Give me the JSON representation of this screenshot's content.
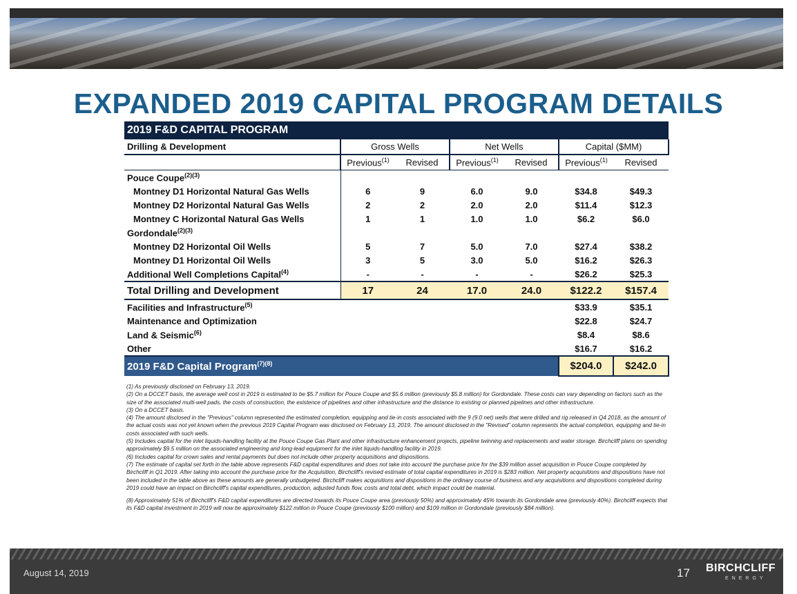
{
  "title": "EXPANDED 2019 CAPITAL PROGRAM DETAILS",
  "table": {
    "title": "2019 F&D CAPITAL PROGRAM",
    "label_header": "Drilling & Development",
    "group_headers": [
      "Gross Wells",
      "Net Wells",
      "Capital ($MM)"
    ],
    "sub_headers": [
      {
        "text": "Previous",
        "sup": "(1)"
      },
      {
        "text": "Revised"
      },
      {
        "text": "Previous",
        "sup": "(1)"
      },
      {
        "text": "Revised"
      },
      {
        "text": "Previous",
        "sup": "(1)"
      },
      {
        "text": "Revised"
      }
    ],
    "groups": [
      {
        "label": "Pouce Coupe",
        "sup": "(2)(3)",
        "rows": [
          {
            "label": "Montney D1 Horizontal Natural Gas Wells",
            "values": [
              "6",
              "9",
              "6.0",
              "9.0",
              "$34.8",
              "$49.3"
            ]
          },
          {
            "label": "Montney D2 Horizontal Natural Gas Wells",
            "values": [
              "2",
              "2",
              "2.0",
              "2.0",
              "$11.4",
              "$12.3"
            ]
          },
          {
            "label": "Montney C Horizontal Natural Gas Wells",
            "values": [
              "1",
              "1",
              "1.0",
              "1.0",
              "$6.2",
              "$6.0"
            ]
          }
        ]
      },
      {
        "label": "Gordondale",
        "sup": "(2)(3)",
        "rows": [
          {
            "label": "Montney D2 Horizontal Oil Wells",
            "values": [
              "5",
              "7",
              "5.0",
              "7.0",
              "$27.4",
              "$38.2"
            ]
          },
          {
            "label": "Montney D1 Horizontal Oil Wells",
            "values": [
              "3",
              "5",
              "3.0",
              "5.0",
              "$16.2",
              "$26.3"
            ]
          }
        ]
      }
    ],
    "additional": {
      "label": "Additional Well Completions Capital",
      "sup": "(4)",
      "values": [
        "-",
        "-",
        "-",
        "-",
        "$26.2",
        "$25.3"
      ]
    },
    "total": {
      "label": "Total Drilling and Development",
      "values": [
        "17",
        "24",
        "17.0",
        "24.0",
        "$122.2",
        "$157.4"
      ]
    },
    "other_rows": [
      {
        "label": "Facilities and Infrastructure",
        "sup": "(5)",
        "values": [
          "$33.9",
          "$35.1"
        ]
      },
      {
        "label": "Maintenance and Optimization",
        "values": [
          "$22.8",
          "$24.7"
        ]
      },
      {
        "label": "Land & Seismic",
        "sup": "(6)",
        "values": [
          "$8.4",
          "$8.6"
        ]
      },
      {
        "label": "Other",
        "values": [
          "$16.7",
          "$16.2"
        ]
      }
    ],
    "program": {
      "label": "2019 F&D Capital Program",
      "sup": "(7)(8)",
      "values": [
        "$204.0",
        "$242.0"
      ]
    }
  },
  "footnotes": [
    "(1) As previously disclosed on February 13, 2019.",
    "(2) On a DCCET basis, the average well cost in 2019 is estimated to be $5.7 million for Pouce Coupe and $5.6 million (previously $5.8 million) for Gordondale. These costs can vary depending on factors such as the size of the associated multi-well pads, the costs of construction, the existence of pipelines and other infrastructure and the distance to existing or planned pipelines and other infrastructure.",
    "(3) On a DCCET basis.",
    "(4) The amount disclosed in the \"Previous\" column represented the estimated completion, equipping and tie-in costs associated with the 9 (9.0 net) wells that were drilled and rig released in Q4 2018, as the amount of the actual costs was not yet known when the previous 2019 Capital Program was disclosed on February 13, 2019. The amount disclosed in the \"Revised\" column represents the actual completion, equipping and tie-in costs associated with such wells.",
    "(5) Includes capital for the inlet liquids-handling facility at the Pouce Coupe Gas Plant and other infrastructure enhancement projects, pipeline twinning and replacements and water storage. Birchcliff plans on spending approximately $9.5 million on the associated engineering and long-lead equipment for the inlet liquids-handling facility in 2019.",
    "(6) Includes capital for crown sales and rental payments but does not include other property acquisitions and dispositions.",
    "(7) The estimate of capital set forth in the table above represents F&D capital expenditures and does not take into account the purchase price for the $39 million asset acquisition in Pouce Coupe completed by Birchcliff in Q1 2019. After taking into account the purchase price for the Acquisition, Birchcliff's revised estimate of total capital expenditures in 2019 is $283 million.  Net property acquisitions and dispositions have not been included in the table above as these amounts are generally unbudgeted. Birchcliff makes acquisitions and dispositions in the ordinary course of business and any acquisitions and dispositions completed during 2019 could have an impact on Birchcliff's capital expenditures, production, adjusted funds flow, costs and total debt, which impact could be material.",
    "(8) Approximately 51% of Birchcliff's F&D capital expenditures are directed towards its Pouce Coupe area (previously 50%) and approximately 45% towards its Gordondale area (previously 40%). Birchcliff expects that its F&D capital investment in 2019 will now be approximately $122 million in Pouce Coupe (previously $100 million) and $109 million in Gordondale (previously $84 million)."
  ],
  "footer": {
    "date": "August 14, 2019",
    "page": "17",
    "logo": "BIRCHCLIFF",
    "logo_sub": "ENERGY"
  }
}
